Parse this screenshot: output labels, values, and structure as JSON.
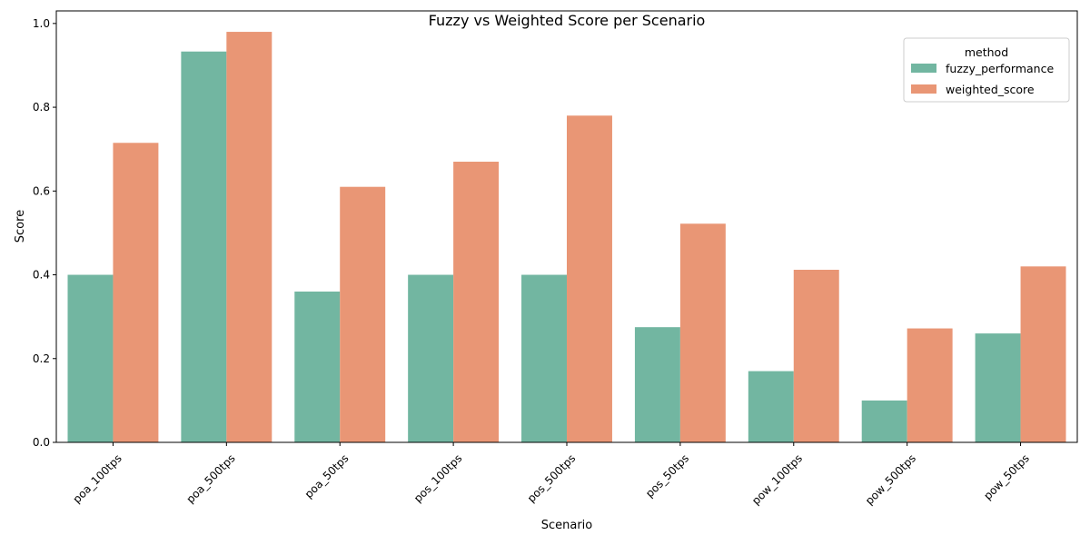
{
  "chart_data": {
    "type": "bar",
    "title": "Fuzzy vs Weighted Score per Scenario",
    "xlabel": "Scenario",
    "ylabel": "Score",
    "ylim": [
      0,
      1.03
    ],
    "yticks": [
      "0.0",
      "0.2",
      "0.4",
      "0.6",
      "0.8",
      "1.0"
    ],
    "ytick_values": [
      0,
      0.2,
      0.4,
      0.6,
      0.8,
      1.0
    ],
    "categories": [
      "poa_100tps",
      "poa_500tps",
      "poa_50tps",
      "pos_100tps",
      "pos_500tps",
      "pos_50tps",
      "pow_100tps",
      "pow_500tps",
      "pow_50tps"
    ],
    "series": [
      {
        "name": "fuzzy_performance",
        "color": "#72b6a1",
        "values": [
          0.4,
          0.933,
          0.36,
          0.4,
          0.4,
          0.275,
          0.17,
          0.1,
          0.26
        ]
      },
      {
        "name": "weighted_score",
        "color": "#e99675",
        "values": [
          0.715,
          0.98,
          0.61,
          0.67,
          0.78,
          0.522,
          0.412,
          0.272,
          0.42
        ]
      }
    ],
    "legend": {
      "title": "method",
      "placement": "top-right"
    },
    "grid": false
  }
}
